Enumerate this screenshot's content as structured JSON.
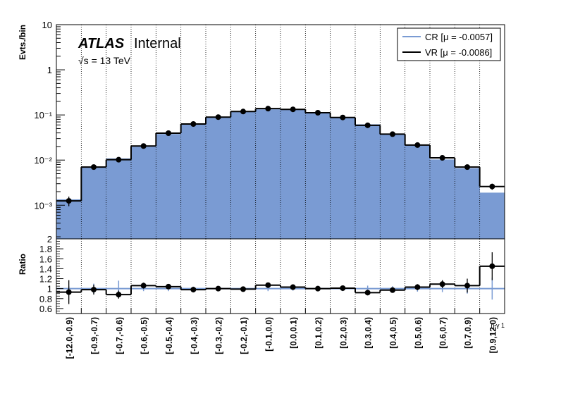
{
  "chart_data": {
    "type": "bar",
    "title": "",
    "experiment": "ATLAS",
    "status": "Internal",
    "energy": "√s = 13 TeV",
    "log_y": true,
    "categories": [
      "[-12.0,-0.9)",
      "[-0.9,-0.7)",
      "[-0.7,-0.6)",
      "[-0.6,-0.5)",
      "[-0.5,-0.4)",
      "[-0.4,-0.3)",
      "[-0.3,-0.2)",
      "[-0.2,-0.1)",
      "[-0.1,0.0)",
      "[0.0,0.1)",
      "[0.1,0.2)",
      "[0.2,0.3)",
      "[0.3,0.4)",
      "[0.4,0.5)",
      "[0.5,0.6)",
      "[0.6,0.7)",
      "[0.7,0.9)",
      "[0.9,12.0)"
    ],
    "xlabel": "η γ 1",
    "ylabel": "Evts./bin",
    "ylim": [
      0.00018,
      10
    ],
    "y_tick_labels": [
      "10⁻³",
      "10⁻²",
      "10⁻¹",
      "1",
      "10"
    ],
    "series": [
      {
        "name": "CR [μ = -0.0057]",
        "color": "#7a9bd3",
        "style": "filled",
        "values": [
          0.00135,
          0.0071,
          0.0109,
          0.0198,
          0.0378,
          0.0615,
          0.088,
          0.117,
          0.133,
          0.13,
          0.112,
          0.086,
          0.062,
          0.0385,
          0.021,
          0.0103,
          0.0066,
          0.0019
        ]
      },
      {
        "name": "VR [μ = -0.0086]",
        "color": "#000000",
        "style": "points",
        "values": [
          0.00125,
          0.007,
          0.0102,
          0.0205,
          0.0395,
          0.063,
          0.0895,
          0.119,
          0.138,
          0.133,
          0.112,
          0.088,
          0.059,
          0.0375,
          0.0215,
          0.0112,
          0.007,
          0.0026
        ],
        "errors_low": [
          0.0003,
          0.0005,
          0.0007,
          0.001,
          0.0015,
          0.002,
          0.0025,
          0.003,
          0.003,
          0.003,
          0.003,
          0.0025,
          0.002,
          0.0015,
          0.001,
          0.0007,
          0.0005,
          0.0004
        ],
        "errors_high": [
          0.0003,
          0.0005,
          0.0007,
          0.001,
          0.0015,
          0.002,
          0.0025,
          0.003,
          0.003,
          0.003,
          0.003,
          0.0025,
          0.002,
          0.0015,
          0.001,
          0.0007,
          0.0005,
          0.0004
        ]
      }
    ],
    "legend": {
      "placement": "top-right"
    },
    "ratio": {
      "ylabel": "Ratio",
      "ylim": [
        0.5,
        2.0
      ],
      "ticks": [
        0.6,
        0.8,
        1.0,
        1.2,
        1.4,
        1.6,
        1.8,
        2.0
      ],
      "tick_labels": [
        "0.6",
        "0.8",
        "1",
        "1.2",
        "1.4",
        "1.6",
        "1.8",
        "2"
      ],
      "reference": {
        "value": 1.0,
        "errors": [
          0.05,
          0.1,
          0.16,
          0.05,
          0.05,
          0.04,
          0.04,
          0.04,
          0.05,
          0.04,
          0.05,
          0.05,
          0.06,
          0.05,
          0.06,
          0.07,
          0.1,
          0.22
        ],
        "color": "#7a9bd3"
      },
      "values": [
        0.93,
        0.98,
        0.88,
        1.06,
        1.04,
        0.98,
        1.0,
        0.99,
        1.07,
        1.03,
        1.0,
        1.01,
        0.92,
        0.97,
        1.03,
        1.09,
        1.06,
        1.45
      ],
      "errors": [
        0.24,
        0.1,
        0.08,
        0.06,
        0.04,
        0.03,
        0.03,
        0.03,
        0.03,
        0.03,
        0.03,
        0.03,
        0.04,
        0.04,
        0.06,
        0.08,
        0.14,
        0.28
      ]
    },
    "grid": {
      "x": true,
      "y": false
    }
  }
}
